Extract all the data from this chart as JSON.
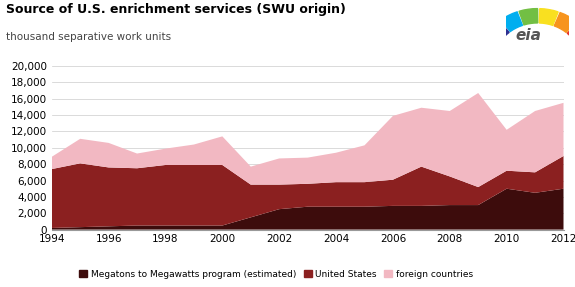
{
  "title": "Source of U.S. enrichment services (SWU origin)",
  "subtitle": "thousand separative work units",
  "years": [
    1994,
    1995,
    1996,
    1997,
    1998,
    1999,
    2000,
    2001,
    2002,
    2003,
    2004,
    2005,
    2006,
    2007,
    2008,
    2009,
    2010,
    2011,
    2012
  ],
  "megatons": [
    200,
    300,
    400,
    500,
    500,
    500,
    500,
    1500,
    2500,
    2800,
    2800,
    2800,
    2900,
    2900,
    3000,
    3000,
    5000,
    4500,
    5000
  ],
  "united_states": [
    7200,
    7800,
    7200,
    7000,
    7400,
    7400,
    7400,
    4000,
    3000,
    2800,
    3000,
    3000,
    3200,
    4800,
    3500,
    2200,
    2200,
    2500,
    4000
  ],
  "foreign_countries": [
    1500,
    3000,
    3000,
    1800,
    2000,
    2500,
    3500,
    2200,
    3200,
    3200,
    3600,
    4500,
    7800,
    7200,
    8000,
    11500,
    5000,
    7500,
    6500
  ],
  "color_megatons": "#3d0c0c",
  "color_us": "#8b2020",
  "color_foreign": "#f2b8c2",
  "ylim": [
    0,
    20000
  ],
  "yticks": [
    0,
    2000,
    4000,
    6000,
    8000,
    10000,
    12000,
    14000,
    16000,
    18000,
    20000
  ],
  "xticks": [
    1994,
    1996,
    1998,
    2000,
    2002,
    2004,
    2006,
    2008,
    2010,
    2012
  ],
  "legend_megatons": "Megatons to Megawatts program (estimated)",
  "legend_us": "United States",
  "legend_foreign": "foreign countries",
  "background_color": "#ffffff"
}
